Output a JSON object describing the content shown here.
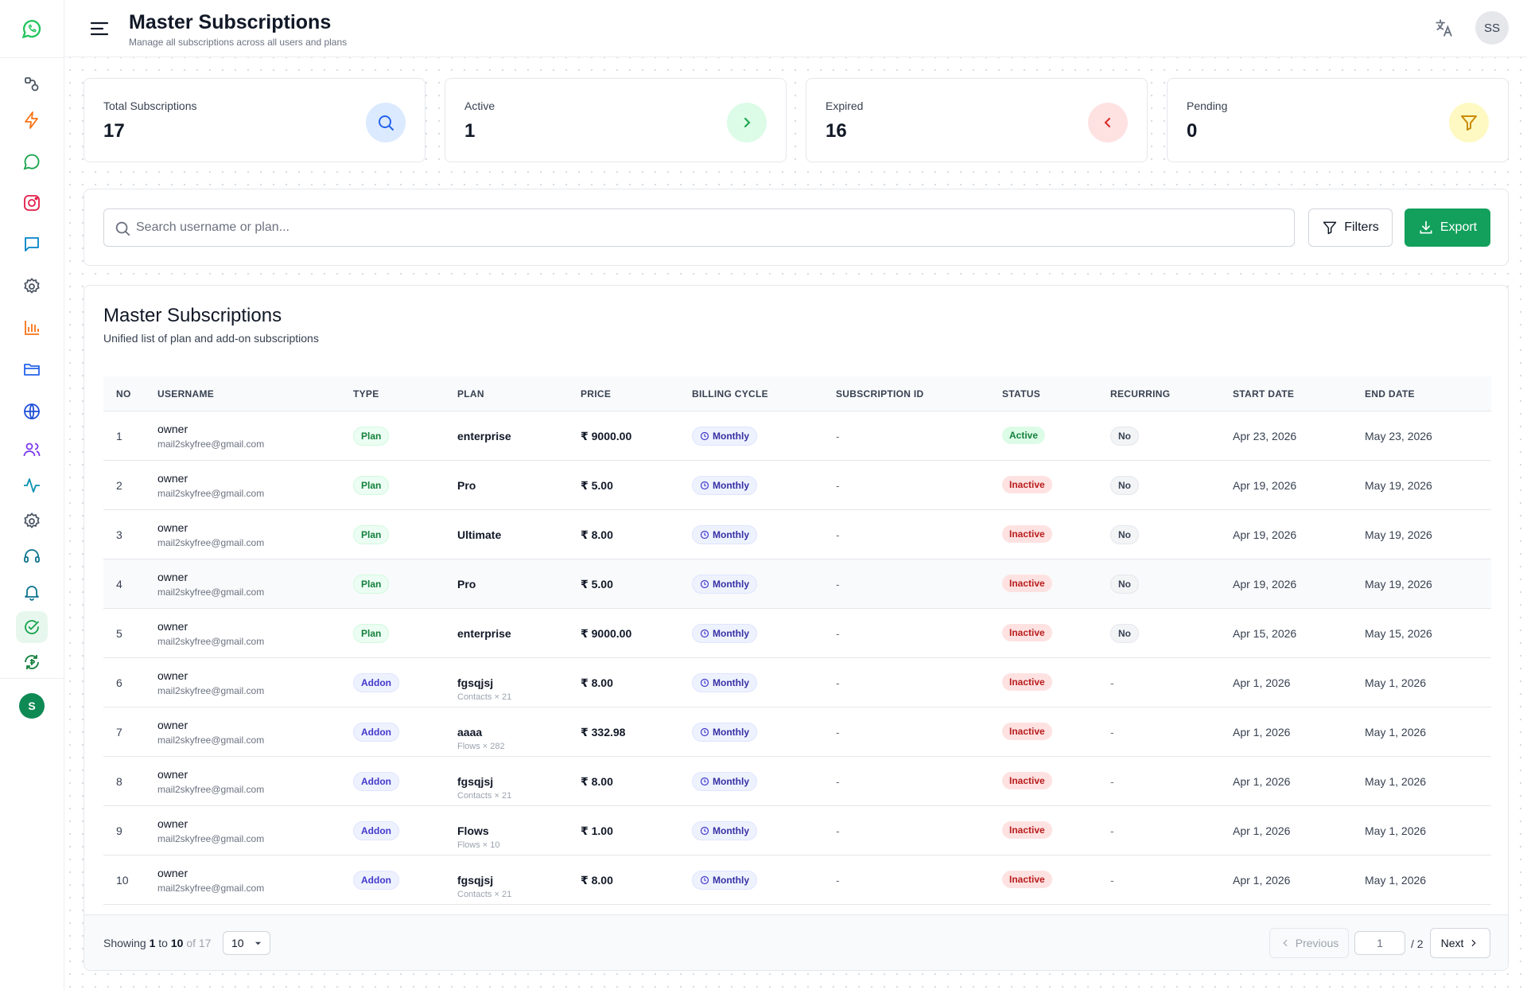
{
  "header": {
    "title": "Master Subscriptions",
    "subtitle": "Manage all subscriptions across all users and plans",
    "user_initials": "SS"
  },
  "sidebar": {
    "icons": [
      "whatsapp-logo-icon",
      "connections-icon",
      "lightning-icon",
      "whatsapp-icon",
      "instagram-icon",
      "chat-icon",
      "settings-icon",
      "analytics-icon",
      "folder-icon",
      "globe-icon",
      "users-icon",
      "activity-icon",
      "config-icon",
      "support-icon",
      "notifications-icon",
      "subscriptions-icon",
      "refresh-icon"
    ],
    "active_item": "subscriptions-icon",
    "avatar_letter": "S"
  },
  "stats": [
    {
      "label": "Total Subscriptions",
      "value": "17",
      "icon": "search-icon",
      "bg": "#dbeafe",
      "color": "#2563eb"
    },
    {
      "label": "Active",
      "value": "1",
      "icon": "chevron-right-icon",
      "bg": "#dcfce7",
      "color": "#16a34a"
    },
    {
      "label": "Expired",
      "value": "16",
      "icon": "chevron-left-icon",
      "bg": "#fee2e2",
      "color": "#dc2626"
    },
    {
      "label": "Pending",
      "value": "0",
      "icon": "filter-icon",
      "bg": "#fef9c3",
      "color": "#ca8a04"
    }
  ],
  "search": {
    "placeholder": "Search username or plan...",
    "value": "",
    "filters_label": "Filters",
    "export_label": "Export"
  },
  "table": {
    "title": "Master Subscriptions",
    "subtitle": "Unified list of plan and add-on subscriptions",
    "columns": [
      "NO",
      "USERNAME",
      "TYPE",
      "PLAN",
      "PRICE",
      "BILLING CYCLE",
      "SUBSCRIPTION ID",
      "STATUS",
      "RECURRING",
      "START DATE",
      "END DATE"
    ],
    "rows": [
      {
        "no": "1",
        "username": "owner",
        "email": "mail2skyfree@gmail.com",
        "type": "Plan",
        "plan": "enterprise",
        "plan_sub": "",
        "price": "₹ 9000.00",
        "billing": "Monthly",
        "sub_id": "-",
        "status": "Active",
        "recurring": "No",
        "start": "Apr 23, 2026",
        "end": "May 23, 2026"
      },
      {
        "no": "2",
        "username": "owner",
        "email": "mail2skyfree@gmail.com",
        "type": "Plan",
        "plan": "Pro",
        "plan_sub": "",
        "price": "₹ 5.00",
        "billing": "Monthly",
        "sub_id": "-",
        "status": "Inactive",
        "recurring": "No",
        "start": "Apr 19, 2026",
        "end": "May 19, 2026"
      },
      {
        "no": "3",
        "username": "owner",
        "email": "mail2skyfree@gmail.com",
        "type": "Plan",
        "plan": "Ultimate",
        "plan_sub": "",
        "price": "₹ 8.00",
        "billing": "Monthly",
        "sub_id": "-",
        "status": "Inactive",
        "recurring": "No",
        "start": "Apr 19, 2026",
        "end": "May 19, 2026"
      },
      {
        "no": "4",
        "username": "owner",
        "email": "mail2skyfree@gmail.com",
        "type": "Plan",
        "plan": "Pro",
        "plan_sub": "",
        "price": "₹ 5.00",
        "billing": "Monthly",
        "sub_id": "-",
        "status": "Inactive",
        "recurring": "No",
        "start": "Apr 19, 2026",
        "end": "May 19, 2026"
      },
      {
        "no": "5",
        "username": "owner",
        "email": "mail2skyfree@gmail.com",
        "type": "Plan",
        "plan": "enterprise",
        "plan_sub": "",
        "price": "₹ 9000.00",
        "billing": "Monthly",
        "sub_id": "-",
        "status": "Inactive",
        "recurring": "No",
        "start": "Apr 15, 2026",
        "end": "May 15, 2026"
      },
      {
        "no": "6",
        "username": "owner",
        "email": "mail2skyfree@gmail.com",
        "type": "Addon",
        "plan": "fgsqjsj",
        "plan_sub": "Contacts × 21",
        "price": "₹ 8.00",
        "billing": "Monthly",
        "sub_id": "-",
        "status": "Inactive",
        "recurring": "-",
        "start": "Apr 1, 2026",
        "end": "May 1, 2026"
      },
      {
        "no": "7",
        "username": "owner",
        "email": "mail2skyfree@gmail.com",
        "type": "Addon",
        "plan": "aaaa",
        "plan_sub": "Flows × 282",
        "price": "₹ 332.98",
        "billing": "Monthly",
        "sub_id": "-",
        "status": "Inactive",
        "recurring": "-",
        "start": "Apr 1, 2026",
        "end": "May 1, 2026"
      },
      {
        "no": "8",
        "username": "owner",
        "email": "mail2skyfree@gmail.com",
        "type": "Addon",
        "plan": "fgsqjsj",
        "plan_sub": "Contacts × 21",
        "price": "₹ 8.00",
        "billing": "Monthly",
        "sub_id": "-",
        "status": "Inactive",
        "recurring": "-",
        "start": "Apr 1, 2026",
        "end": "May 1, 2026"
      },
      {
        "no": "9",
        "username": "owner",
        "email": "mail2skyfree@gmail.com",
        "type": "Addon",
        "plan": "Flows",
        "plan_sub": "Flows × 10",
        "price": "₹ 1.00",
        "billing": "Monthly",
        "sub_id": "-",
        "status": "Inactive",
        "recurring": "-",
        "start": "Apr 1, 2026",
        "end": "May 1, 2026"
      },
      {
        "no": "10",
        "username": "owner",
        "email": "mail2skyfree@gmail.com",
        "type": "Addon",
        "plan": "fgsqjsj",
        "plan_sub": "Contacts × 21",
        "price": "₹ 8.00",
        "billing": "Monthly",
        "sub_id": "-",
        "status": "Inactive",
        "recurring": "-",
        "start": "Apr 1, 2026",
        "end": "May 1, 2026"
      }
    ]
  },
  "pagination": {
    "showing_prefix": "Showing",
    "from": "1",
    "to_word": "to",
    "to": "10",
    "of_text": "of 17",
    "page_size": "10",
    "prev_label": "Previous",
    "current_page": "1",
    "total_pages": "/ 2",
    "next_label": "Next"
  }
}
